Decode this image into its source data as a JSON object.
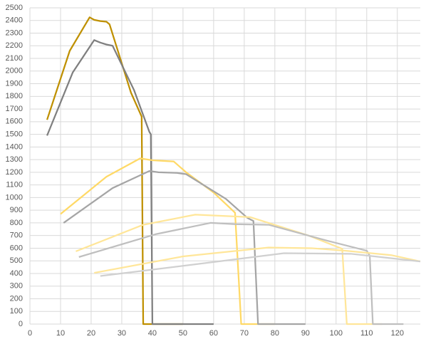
{
  "chart_data": {
    "type": "line",
    "grid": true,
    "xlim": [
      0,
      127.5
    ],
    "xticks": [
      0,
      10,
      20,
      30,
      40,
      50,
      60,
      70,
      80,
      90,
      100,
      110,
      120
    ],
    "ylim": [
      0,
      2500
    ],
    "yticks": [
      0,
      100,
      200,
      300,
      400,
      500,
      600,
      700,
      800,
      900,
      1000,
      1100,
      1200,
      1300,
      1400,
      1500,
      1600,
      1700,
      1800,
      1900,
      2000,
      2100,
      2200,
      2300,
      2400,
      2500
    ],
    "series": [
      {
        "color": "#bf9000",
        "x": [
          5.6,
          13,
          19.5,
          21,
          23,
          25,
          26,
          33,
          36.5,
          37,
          50
        ],
        "values": [
          1615,
          2160,
          2425,
          2405,
          2395,
          2390,
          2370,
          1830,
          1640,
          0,
          0
        ]
      },
      {
        "color": "#7f7f7f",
        "x": [
          5.6,
          14,
          21,
          23,
          25,
          27,
          34,
          39,
          39.5,
          40,
          60
        ],
        "values": [
          1490,
          1990,
          2245,
          2225,
          2210,
          2200,
          1850,
          1520,
          1500,
          0,
          0
        ]
      },
      {
        "color": "#ffd966",
        "x": [
          10,
          25,
          36,
          40,
          47,
          51,
          60,
          67,
          69,
          80
        ],
        "values": [
          870,
          1165,
          1310,
          1295,
          1285,
          1200,
          1040,
          880,
          0,
          0
        ]
      },
      {
        "color": "#a5a5a5",
        "x": [
          11,
          27,
          39,
          42,
          48,
          51,
          58,
          64,
          71,
          73,
          74.5,
          90
        ],
        "values": [
          800,
          1075,
          1210,
          1200,
          1195,
          1185,
          1080,
          990,
          840,
          815,
          0,
          0
        ]
      },
      {
        "color": "#ffe699",
        "x": [
          15,
          37,
          54,
          63,
          72,
          91,
          102,
          103.5,
          115
        ],
        "values": [
          575,
          785,
          865,
          855,
          845,
          700,
          595,
          0,
          0
        ]
      },
      {
        "color": "#bfbfbf",
        "x": [
          16,
          41,
          59,
          67,
          78,
          97,
          110,
          111,
          112,
          122
        ],
        "values": [
          530,
          710,
          800,
          790,
          785,
          660,
          580,
          540,
          0,
          0
        ]
      },
      {
        "color": "#ffe699",
        "x": [
          21,
          50,
          78,
          92,
          103,
          118,
          127.5
        ],
        "values": [
          405,
          535,
          605,
          600,
          580,
          545,
          495
        ]
      },
      {
        "color": "#d0d0d0",
        "x": [
          23,
          50,
          83,
          105,
          127.5
        ],
        "values": [
          380,
          460,
          560,
          555,
          495
        ]
      }
    ]
  }
}
